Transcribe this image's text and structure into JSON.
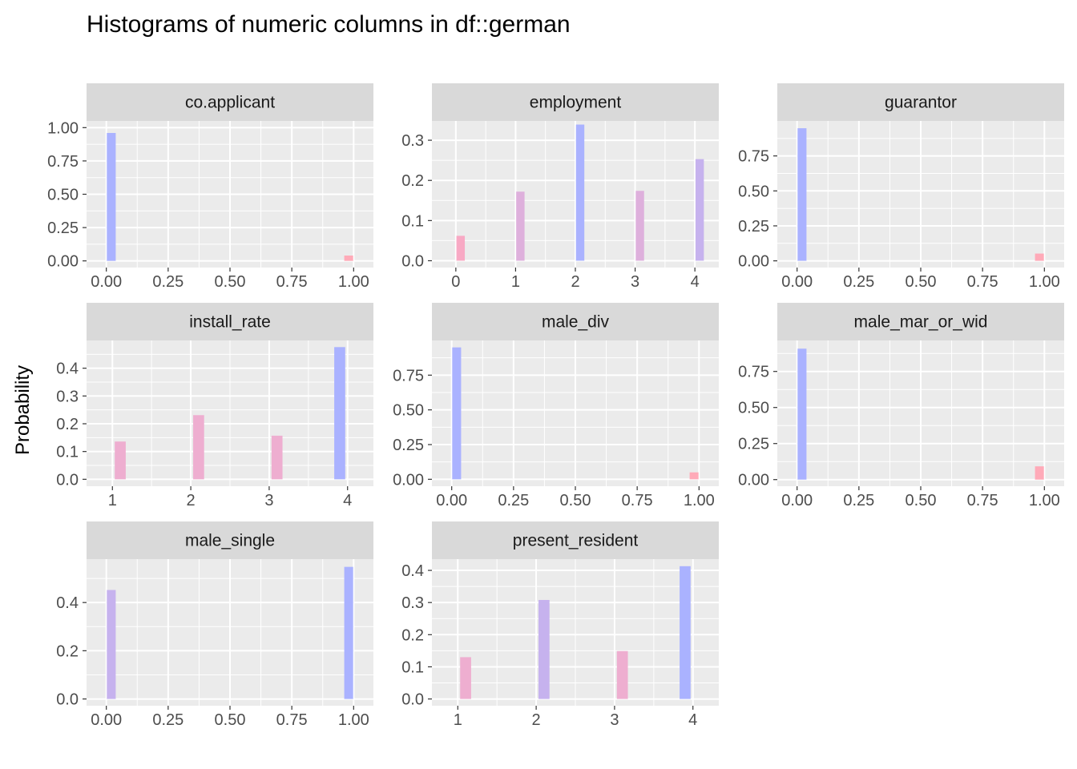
{
  "chart_data": {
    "type": "bar",
    "title": "Histograms of numeric columns in df::german",
    "ylabel": "Probability",
    "xlabel": "",
    "grid": true,
    "legend": "none",
    "facets": [
      {
        "name": "co.applicant",
        "xlim": [
          -0.08,
          1.08
        ],
        "ylim": [
          -0.05,
          1.05
        ],
        "x_ticks": [
          0,
          0.25,
          0.5,
          0.75,
          1
        ],
        "x_tick_labels": [
          "0.00",
          "0.25",
          "0.50",
          "0.75",
          "1.00"
        ],
        "y_ticks": [
          0,
          0.25,
          0.5,
          0.75,
          1
        ],
        "y_tick_labels": [
          "0.00",
          "0.25",
          "0.50",
          "0.75",
          "1.00"
        ],
        "bar_width": 0.036,
        "bars": [
          {
            "x": 0.02,
            "value": 0.96,
            "color": "#aab2ff"
          },
          {
            "x": 0.98,
            "value": 0.04,
            "color": "#ffaab8"
          }
        ]
      },
      {
        "name": "employment",
        "xlim": [
          -0.4,
          4.4
        ],
        "ylim": [
          -0.017,
          0.348
        ],
        "x_ticks": [
          0,
          1,
          2,
          3,
          4
        ],
        "x_tick_labels": [
          "0",
          "1",
          "2",
          "3",
          "4"
        ],
        "y_ticks": [
          0,
          0.1,
          0.2,
          0.3
        ],
        "y_tick_labels": [
          "0.0",
          "0.1",
          "0.2",
          "0.3"
        ],
        "bar_width": 0.14,
        "bars": [
          {
            "x": 0.08,
            "value": 0.062,
            "color": "#f8a9c4"
          },
          {
            "x": 1.08,
            "value": 0.172,
            "color": "#deb0dc"
          },
          {
            "x": 2.08,
            "value": 0.339,
            "color": "#aab2ff"
          },
          {
            "x": 3.08,
            "value": 0.174,
            "color": "#deb0dc"
          },
          {
            "x": 4.08,
            "value": 0.253,
            "color": "#c6b2ee"
          }
        ]
      },
      {
        "name": "guarantor",
        "xlim": [
          -0.08,
          1.08
        ],
        "ylim": [
          -0.048,
          1.0
        ],
        "x_ticks": [
          0,
          0.25,
          0.5,
          0.75,
          1
        ],
        "x_tick_labels": [
          "0.00",
          "0.25",
          "0.50",
          "0.75",
          "1.00"
        ],
        "y_ticks": [
          0,
          0.25,
          0.5,
          0.75
        ],
        "y_tick_labels": [
          "0.00",
          "0.25",
          "0.50",
          "0.75"
        ],
        "bar_width": 0.036,
        "bars": [
          {
            "x": 0.02,
            "value": 0.948,
            "color": "#aab2ff"
          },
          {
            "x": 0.98,
            "value": 0.052,
            "color": "#ffaab8"
          }
        ]
      },
      {
        "name": "install_rate",
        "xlim": [
          0.67,
          4.33
        ],
        "ylim": [
          -0.025,
          0.5
        ],
        "x_ticks": [
          1,
          2,
          3,
          4
        ],
        "x_tick_labels": [
          "1",
          "2",
          "3",
          "4"
        ],
        "y_ticks": [
          0,
          0.1,
          0.2,
          0.3,
          0.4
        ],
        "y_tick_labels": [
          "0.0",
          "0.1",
          "0.2",
          "0.3",
          "0.4"
        ],
        "bar_width": 0.14,
        "bars": [
          {
            "x": 1.1,
            "value": 0.136,
            "color": "#eeaed0"
          },
          {
            "x": 2.1,
            "value": 0.231,
            "color": "#eeaed0"
          },
          {
            "x": 3.1,
            "value": 0.157,
            "color": "#eeaed0"
          },
          {
            "x": 3.9,
            "value": 0.476,
            "color": "#aab2ff"
          }
        ]
      },
      {
        "name": "male_div",
        "xlim": [
          -0.08,
          1.08
        ],
        "ylim": [
          -0.05,
          1.0
        ],
        "x_ticks": [
          0,
          0.25,
          0.5,
          0.75,
          1
        ],
        "x_tick_labels": [
          "0.00",
          "0.25",
          "0.50",
          "0.75",
          "1.00"
        ],
        "y_ticks": [
          0,
          0.25,
          0.5,
          0.75
        ],
        "y_tick_labels": [
          "0.00",
          "0.25",
          "0.50",
          "0.75"
        ],
        "bar_width": 0.036,
        "bars": [
          {
            "x": 0.02,
            "value": 0.95,
            "color": "#aab2ff"
          },
          {
            "x": 0.98,
            "value": 0.05,
            "color": "#ffaab8"
          }
        ]
      },
      {
        "name": "male_mar_or_wid",
        "xlim": [
          -0.08,
          1.08
        ],
        "ylim": [
          -0.046,
          0.965
        ],
        "x_ticks": [
          0,
          0.25,
          0.5,
          0.75,
          1
        ],
        "x_tick_labels": [
          "0.00",
          "0.25",
          "0.50",
          "0.75",
          "1.00"
        ],
        "y_ticks": [
          0,
          0.25,
          0.5,
          0.75
        ],
        "y_tick_labels": [
          "0.00",
          "0.25",
          "0.50",
          "0.75"
        ],
        "bar_width": 0.036,
        "bars": [
          {
            "x": 0.02,
            "value": 0.908,
            "color": "#aab2ff"
          },
          {
            "x": 0.98,
            "value": 0.092,
            "color": "#ffaab8"
          }
        ]
      },
      {
        "name": "male_single",
        "xlim": [
          -0.08,
          1.08
        ],
        "ylim": [
          -0.028,
          0.58
        ],
        "x_ticks": [
          0,
          0.25,
          0.5,
          0.75,
          1
        ],
        "x_tick_labels": [
          "0.00",
          "0.25",
          "0.50",
          "0.75",
          "1.00"
        ],
        "y_ticks": [
          0,
          0.2,
          0.4
        ],
        "y_tick_labels": [
          "0.0",
          "0.2",
          "0.4"
        ],
        "bar_width": 0.036,
        "bars": [
          {
            "x": 0.02,
            "value": 0.452,
            "color": "#c6b2ee"
          },
          {
            "x": 0.98,
            "value": 0.548,
            "color": "#aab2ff"
          }
        ]
      },
      {
        "name": "present_resident",
        "xlim": [
          0.67,
          4.33
        ],
        "ylim": [
          -0.021,
          0.435
        ],
        "x_ticks": [
          1,
          2,
          3,
          4
        ],
        "x_tick_labels": [
          "1",
          "2",
          "3",
          "4"
        ],
        "y_ticks": [
          0,
          0.1,
          0.2,
          0.3,
          0.4
        ],
        "y_tick_labels": [
          "0.0",
          "0.1",
          "0.2",
          "0.3",
          "0.4"
        ],
        "bar_width": 0.14,
        "bars": [
          {
            "x": 1.1,
            "value": 0.13,
            "color": "#eeaed0"
          },
          {
            "x": 2.1,
            "value": 0.308,
            "color": "#c6b2ee"
          },
          {
            "x": 3.1,
            "value": 0.149,
            "color": "#eeaed0"
          },
          {
            "x": 3.9,
            "value": 0.413,
            "color": "#aab2ff"
          }
        ]
      }
    ]
  }
}
